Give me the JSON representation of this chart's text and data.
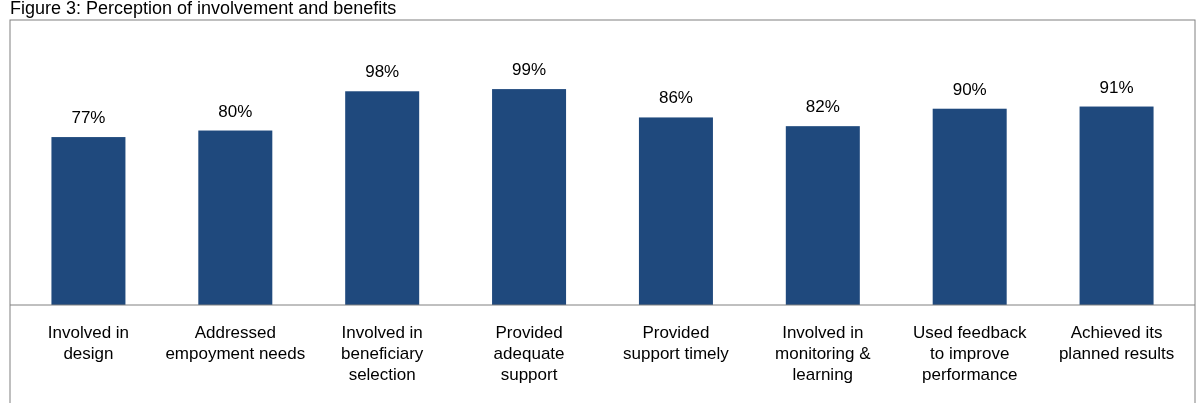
{
  "chart_data": {
    "type": "bar",
    "title": "Figure 3:        Perception of involvement and benefits",
    "categories": [
      "Involved in design",
      "Addressed empoyment needs",
      "Involved in beneficiary selection",
      "Provided adequate support",
      "Provided support timely",
      "Involved in monitoring & learning",
      "Used feedback to improve performance",
      "Achieved its planned results"
    ],
    "values": [
      77,
      80,
      98,
      99,
      86,
      82,
      90,
      91
    ],
    "value_labels": [
      "77%",
      "80%",
      "98%",
      "99%",
      "86%",
      "82%",
      "90%",
      "91%"
    ],
    "color": "#1f497d"
  }
}
